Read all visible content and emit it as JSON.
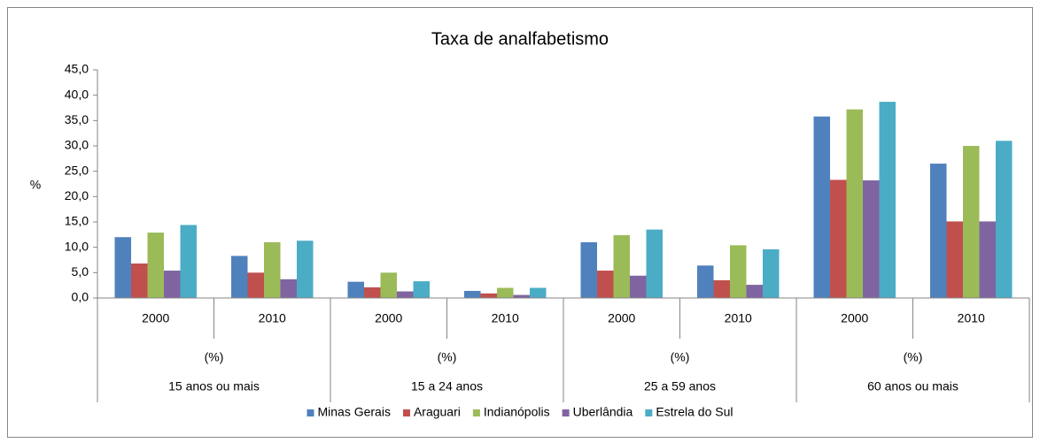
{
  "chart_data": {
    "type": "bar",
    "title": "Taxa de analfabetismo",
    "y_label": "%",
    "categories": [
      "2000",
      "2010",
      "2000",
      "2010",
      "2000",
      "2010",
      "2000",
      "2010"
    ],
    "unit_labels": [
      "(%)",
      "(%)",
      "(%)",
      "(%)"
    ],
    "groups": [
      "15 anos ou mais",
      "15 a 24 anos",
      "25 a 59 anos",
      "60 anos ou mais"
    ],
    "series": [
      {
        "name": "Minas Gerais",
        "color": "#4f81bd",
        "values": [
          12.0,
          8.3,
          3.2,
          1.4,
          11.0,
          6.4,
          35.8,
          26.5
        ]
      },
      {
        "name": "Araguari",
        "color": "#c0504d",
        "values": [
          6.8,
          5.0,
          2.1,
          0.9,
          5.4,
          3.5,
          23.3,
          15.1
        ]
      },
      {
        "name": "Indianópolis",
        "color": "#9bbb59",
        "values": [
          12.9,
          11.0,
          5.0,
          2.0,
          12.4,
          10.4,
          37.2,
          30.0
        ]
      },
      {
        "name": "Uberlândia",
        "color": "#8064a2",
        "values": [
          5.4,
          3.7,
          1.3,
          0.6,
          4.4,
          2.6,
          23.2,
          15.1
        ]
      },
      {
        "name": "Estrela do Sul",
        "color": "#4bacc6",
        "values": [
          14.4,
          11.3,
          3.3,
          2.0,
          13.5,
          9.6,
          38.7,
          31.0
        ]
      }
    ],
    "ylim": [
      0,
      45
    ],
    "yticks": [
      {
        "value": 0,
        "label": "0,0"
      },
      {
        "value": 5,
        "label": "5,0"
      },
      {
        "value": 10,
        "label": "10,0"
      },
      {
        "value": 15,
        "label": "15,0"
      },
      {
        "value": 20,
        "label": "20,0"
      },
      {
        "value": 25,
        "label": "25,0"
      },
      {
        "value": 30,
        "label": "30,0"
      },
      {
        "value": 35,
        "label": "35,0"
      },
      {
        "value": 40,
        "label": "40,0"
      },
      {
        "value": 45,
        "label": "45,0"
      }
    ],
    "legend": "bottom"
  }
}
